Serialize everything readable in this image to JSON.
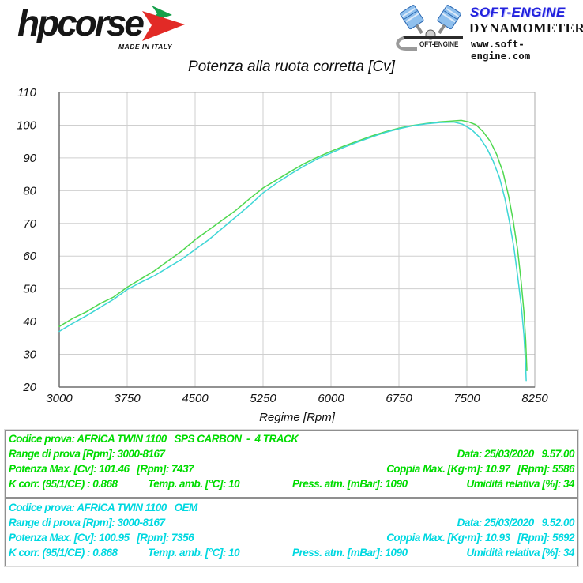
{
  "header": {
    "hpcorse": {
      "brand": "hpcorse",
      "tagline": "MADE IN ITALY"
    },
    "softengine": {
      "brand": "SOFT-ENGINE",
      "logo_s": "S",
      "logo_text": "OFT-ENGINE",
      "line1": "DYNAMOMETERS",
      "line2": "www.soft-engine.com"
    }
  },
  "chart_data": {
    "type": "line",
    "title": "Potenza alla ruota corretta [Cv]",
    "xlabel": "Regime [Rpm]",
    "ylabel": "",
    "xlim": [
      3000,
      8250
    ],
    "ylim": [
      20,
      110
    ],
    "x_ticks": [
      3000,
      3750,
      4500,
      5250,
      6000,
      6750,
      7500,
      8250
    ],
    "y_ticks": [
      20,
      30,
      40,
      50,
      60,
      70,
      80,
      90,
      100,
      110
    ],
    "grid": true,
    "legend_position": "none",
    "series": [
      {
        "name": "AFRICA TWIN 1100 SPS CARBON - 4 TRACK",
        "color": "#4fd84f",
        "points": [
          [
            3000,
            38.5
          ],
          [
            3150,
            41
          ],
          [
            3300,
            43
          ],
          [
            3450,
            45.5
          ],
          [
            3600,
            47.5
          ],
          [
            3750,
            50.5
          ],
          [
            3900,
            53
          ],
          [
            4050,
            55.5
          ],
          [
            4200,
            58.5
          ],
          [
            4350,
            61.5
          ],
          [
            4500,
            65
          ],
          [
            4650,
            68
          ],
          [
            4800,
            71
          ],
          [
            4950,
            74
          ],
          [
            5100,
            77.5
          ],
          [
            5250,
            80.8
          ],
          [
            5400,
            83.3
          ],
          [
            5550,
            85.8
          ],
          [
            5700,
            88.2
          ],
          [
            5850,
            90.2
          ],
          [
            6000,
            92
          ],
          [
            6150,
            93.7
          ],
          [
            6300,
            95.2
          ],
          [
            6450,
            96.7
          ],
          [
            6600,
            98
          ],
          [
            6750,
            99.1
          ],
          [
            6900,
            99.9
          ],
          [
            7050,
            100.5
          ],
          [
            7200,
            101
          ],
          [
            7300,
            101.2
          ],
          [
            7437,
            101.46
          ],
          [
            7520,
            101
          ],
          [
            7600,
            100.1
          ],
          [
            7680,
            98
          ],
          [
            7760,
            95
          ],
          [
            7830,
            91
          ],
          [
            7900,
            85.5
          ],
          [
            7960,
            78.5
          ],
          [
            8010,
            71
          ],
          [
            8060,
            62
          ],
          [
            8100,
            52
          ],
          [
            8130,
            43
          ],
          [
            8150,
            34
          ],
          [
            8163,
            25
          ]
        ]
      },
      {
        "name": "AFRICA TWIN 1100 OEM",
        "color": "#3ed6d6",
        "points": [
          [
            3000,
            37
          ],
          [
            3150,
            39.5
          ],
          [
            3300,
            41.8
          ],
          [
            3450,
            44.3
          ],
          [
            3600,
            46.8
          ],
          [
            3750,
            49.8
          ],
          [
            3900,
            52
          ],
          [
            4050,
            54
          ],
          [
            4200,
            56.5
          ],
          [
            4350,
            59
          ],
          [
            4500,
            62
          ],
          [
            4650,
            65
          ],
          [
            4800,
            68.5
          ],
          [
            4950,
            72
          ],
          [
            5100,
            75.5
          ],
          [
            5250,
            79.3
          ],
          [
            5400,
            82.3
          ],
          [
            5550,
            85
          ],
          [
            5700,
            87.5
          ],
          [
            5850,
            89.7
          ],
          [
            6000,
            91.5
          ],
          [
            6150,
            93.3
          ],
          [
            6300,
            94.9
          ],
          [
            6450,
            96.4
          ],
          [
            6600,
            97.8
          ],
          [
            6750,
            98.9
          ],
          [
            6900,
            99.8
          ],
          [
            7050,
            100.4
          ],
          [
            7200,
            100.8
          ],
          [
            7356,
            100.95
          ],
          [
            7450,
            100.3
          ],
          [
            7550,
            98.7
          ],
          [
            7640,
            96.3
          ],
          [
            7720,
            93
          ],
          [
            7790,
            89
          ],
          [
            7860,
            84
          ],
          [
            7920,
            77.5
          ],
          [
            7970,
            70.5
          ],
          [
            8020,
            62.5
          ],
          [
            8060,
            54
          ],
          [
            8100,
            45
          ],
          [
            8130,
            36
          ],
          [
            8148,
            27
          ],
          [
            8155,
            22
          ]
        ]
      }
    ]
  },
  "tables": [
    {
      "codice": "Codice prova: AFRICA TWIN 1100   SPS CARBON  -  4 TRACK",
      "range": "Range di prova [Rpm]: 3000-8167",
      "data": "Data: 25/03/2020   9.57.00",
      "potenza": "Potenza Max. [Cv]: 101.46   [Rpm]: 7437",
      "coppia": "Coppia Max. [Kg·m]: 10.97   [Rpm]: 5586",
      "k_corr": "K corr. (95/1/CE) : 0.868",
      "temp": "Temp. amb. [°C]: 10",
      "press": "Press. atm. [mBar]: 1090",
      "umidita": "Umidità relativa [%]: 34"
    },
    {
      "codice": "Codice prova: AFRICA TWIN 1100   OEM",
      "range": "Range di prova [Rpm]: 3000-8167",
      "data": "Data: 25/03/2020   9.52.00",
      "potenza": "Potenza Max. [Cv]: 100.95   [Rpm]: 7356",
      "coppia": "Coppia Max. [Kg·m]: 10.93   [Rpm]: 5692",
      "k_corr": "K corr. (95/1/CE) : 0.868",
      "temp": "Temp. amb. [°C]: 10",
      "press": "Press. atm. [mBar]: 1090",
      "umidita": "Umidità relativa [%]: 34"
    }
  ]
}
